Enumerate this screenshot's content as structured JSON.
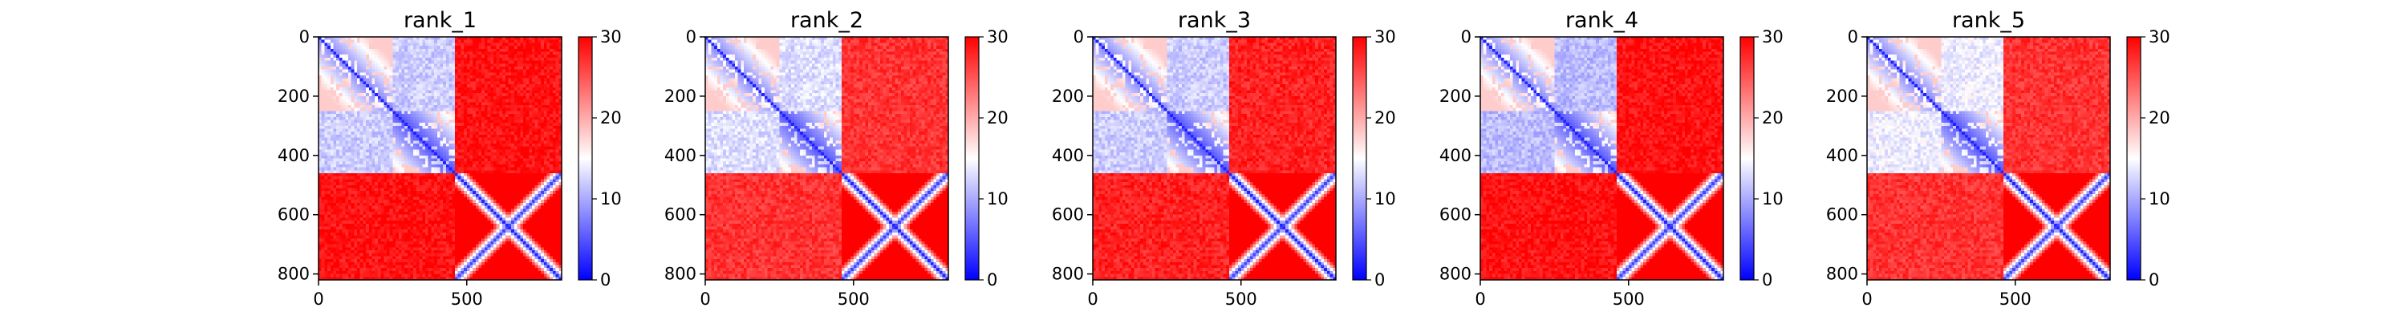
{
  "chart_data": [
    {
      "type": "heatmap",
      "title": "rank_1",
      "xlim": [
        0,
        820
      ],
      "ylim": [
        820,
        0
      ],
      "x_ticks": [
        "0",
        "500"
      ],
      "y_ticks": [
        "0",
        "200",
        "400",
        "600",
        "800"
      ],
      "colorbar": {
        "range": [
          0,
          30
        ],
        "ticks": [
          "0",
          "10",
          "20",
          "30"
        ],
        "colors": [
          "#0000ff",
          "#ffffff",
          "#ff0000"
        ]
      },
      "blocks": [
        {
          "range": [
            0,
            255
          ],
          "value": 8
        },
        {
          "range": [
            255,
            460
          ],
          "value": 5
        },
        {
          "range": [
            460,
            820
          ],
          "value": 4
        }
      ],
      "off_diagonal": [
        {
          "rows": [
            0,
            255
          ],
          "cols": [
            255,
            460
          ],
          "value": 12
        },
        {
          "rows": [
            0,
            460
          ],
          "cols": [
            460,
            820
          ],
          "value": 29
        }
      ]
    },
    {
      "type": "heatmap",
      "title": "rank_2",
      "xlim": [
        0,
        820
      ],
      "ylim": [
        820,
        0
      ],
      "x_ticks": [
        "0",
        "500"
      ],
      "y_ticks": [
        "0",
        "200",
        "400",
        "600",
        "800"
      ],
      "colorbar": {
        "range": [
          0,
          30
        ],
        "ticks": [
          "0",
          "10",
          "20",
          "30"
        ],
        "colors": [
          "#0000ff",
          "#ffffff",
          "#ff0000"
        ]
      },
      "blocks": [
        {
          "range": [
            0,
            255
          ],
          "value": 8
        },
        {
          "range": [
            255,
            460
          ],
          "value": 5
        },
        {
          "range": [
            460,
            820
          ],
          "value": 4
        }
      ],
      "off_diagonal": [
        {
          "rows": [
            0,
            255
          ],
          "cols": [
            255,
            460
          ],
          "value": 13
        },
        {
          "rows": [
            0,
            460
          ],
          "cols": [
            460,
            820
          ],
          "value": 27
        }
      ]
    },
    {
      "type": "heatmap",
      "title": "rank_3",
      "xlim": [
        0,
        820
      ],
      "ylim": [
        820,
        0
      ],
      "x_ticks": [
        "0",
        "500"
      ],
      "y_ticks": [
        "0",
        "200",
        "400",
        "600",
        "800"
      ],
      "colorbar": {
        "range": [
          0,
          30
        ],
        "ticks": [
          "0",
          "10",
          "20",
          "30"
        ],
        "colors": [
          "#0000ff",
          "#ffffff",
          "#ff0000"
        ]
      },
      "blocks": [
        {
          "range": [
            0,
            255
          ],
          "value": 8
        },
        {
          "range": [
            255,
            460
          ],
          "value": 5
        },
        {
          "range": [
            460,
            820
          ],
          "value": 4
        }
      ],
      "off_diagonal": [
        {
          "rows": [
            0,
            255
          ],
          "cols": [
            255,
            460
          ],
          "value": 12
        },
        {
          "rows": [
            0,
            460
          ],
          "cols": [
            460,
            820
          ],
          "value": 28
        }
      ]
    },
    {
      "type": "heatmap",
      "title": "rank_4",
      "xlim": [
        0,
        820
      ],
      "ylim": [
        820,
        0
      ],
      "x_ticks": [
        "0",
        "500"
      ],
      "y_ticks": [
        "0",
        "200",
        "400",
        "600",
        "800"
      ],
      "colorbar": {
        "range": [
          0,
          30
        ],
        "ticks": [
          "0",
          "10",
          "20",
          "30"
        ],
        "colors": [
          "#0000ff",
          "#ffffff",
          "#ff0000"
        ]
      },
      "blocks": [
        {
          "range": [
            0,
            255
          ],
          "value": 8
        },
        {
          "range": [
            255,
            460
          ],
          "value": 5
        },
        {
          "range": [
            460,
            820
          ],
          "value": 4
        }
      ],
      "off_diagonal": [
        {
          "rows": [
            0,
            255
          ],
          "cols": [
            255,
            460
          ],
          "value": 11
        },
        {
          "rows": [
            0,
            460
          ],
          "cols": [
            460,
            820
          ],
          "value": 29
        }
      ]
    },
    {
      "type": "heatmap",
      "title": "rank_5",
      "xlim": [
        0,
        820
      ],
      "ylim": [
        820,
        0
      ],
      "x_ticks": [
        "0",
        "500"
      ],
      "y_ticks": [
        "0",
        "200",
        "400",
        "600",
        "800"
      ],
      "colorbar": {
        "range": [
          0,
          30
        ],
        "ticks": [
          "0",
          "10",
          "20",
          "30"
        ],
        "colors": [
          "#0000ff",
          "#ffffff",
          "#ff0000"
        ]
      },
      "blocks": [
        {
          "range": [
            0,
            255
          ],
          "value": 8
        },
        {
          "range": [
            255,
            460
          ],
          "value": 5
        },
        {
          "range": [
            460,
            820
          ],
          "value": 4
        }
      ],
      "off_diagonal": [
        {
          "rows": [
            0,
            255
          ],
          "cols": [
            255,
            460
          ],
          "value": 14
        },
        {
          "rows": [
            0,
            460
          ],
          "cols": [
            460,
            820
          ],
          "value": 27
        }
      ]
    }
  ]
}
